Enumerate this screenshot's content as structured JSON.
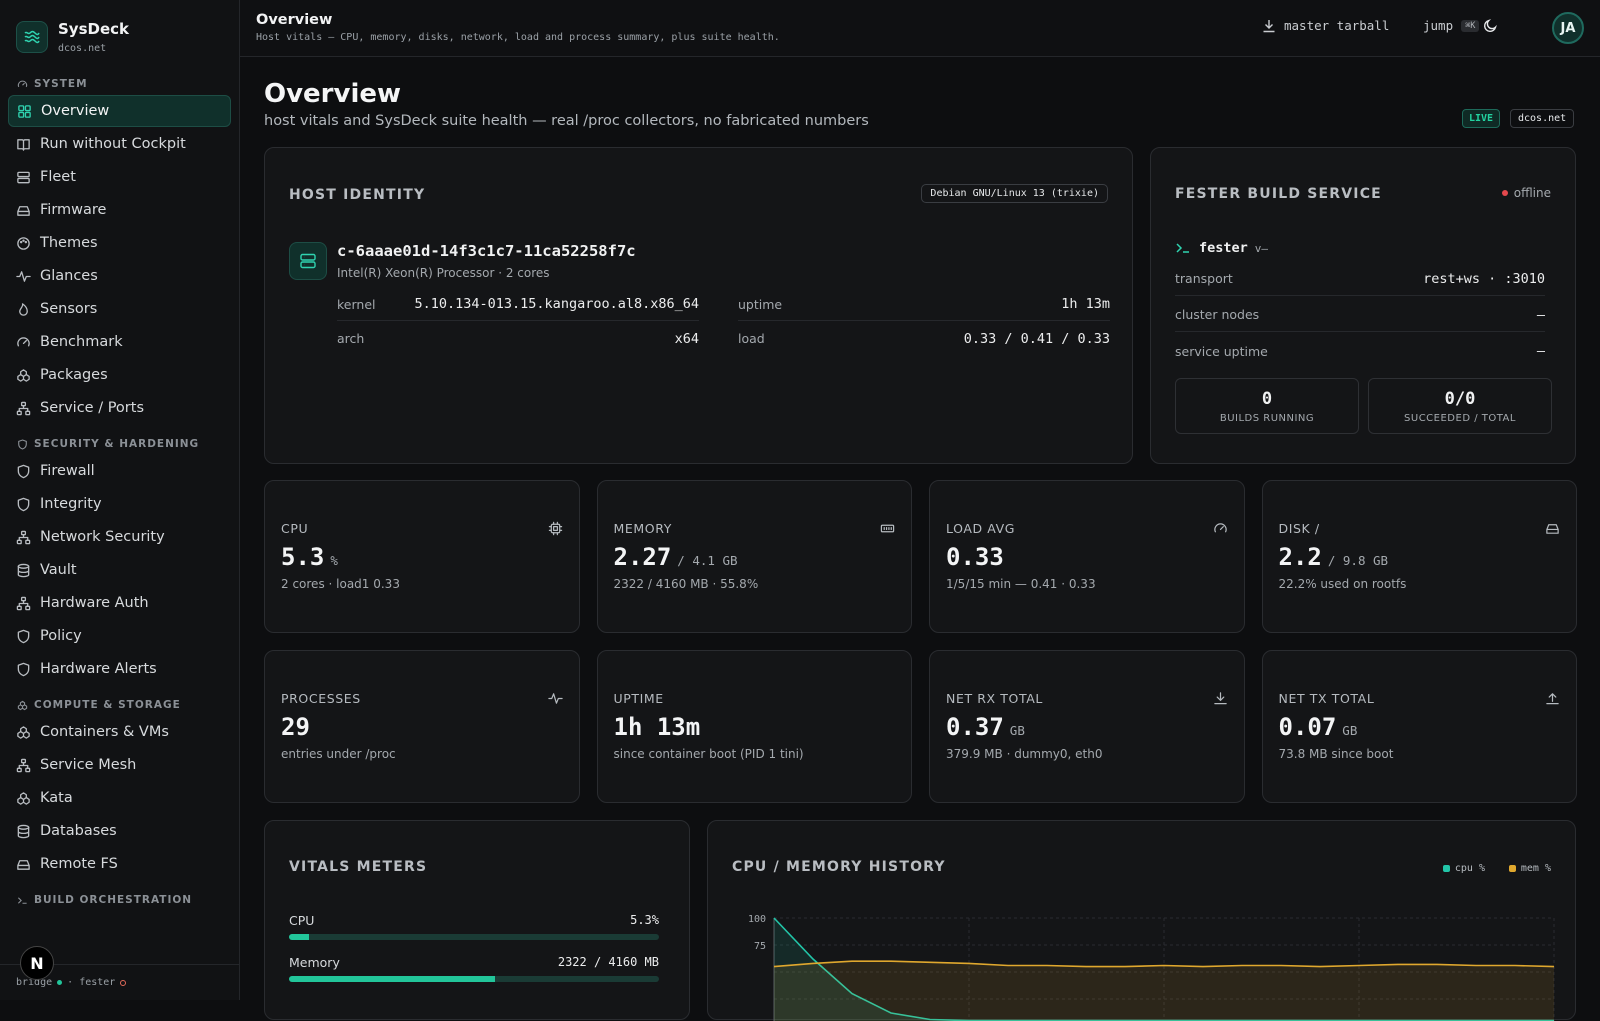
{
  "brand": {
    "name": "SysDeck",
    "host": "dcos.net"
  },
  "sidebar": {
    "sections": [
      {
        "title": "SYSTEM",
        "items": [
          "Overview",
          "Run without Cockpit",
          "Fleet",
          "Firmware",
          "Themes",
          "Glances",
          "Sensors",
          "Benchmark",
          "Packages",
          "Service / Ports"
        ]
      },
      {
        "title": "SECURITY & HARDENING",
        "items": [
          "Firewall",
          "Integrity",
          "Network Security",
          "Vault",
          "Hardware Auth",
          "Policy",
          "Hardware Alerts"
        ]
      },
      {
        "title": "COMPUTE & STORAGE",
        "items": [
          "Containers & VMs",
          "Service Mesh",
          "Kata",
          "Databases",
          "Remote FS"
        ]
      },
      {
        "title": "BUILD ORCHESTRATION",
        "items": []
      }
    ],
    "footer": {
      "bridge": "bridge",
      "sep": "·",
      "fester": "fester"
    },
    "badge": "N"
  },
  "topbar": {
    "title": "Overview",
    "subtitle": "Host vitals — CPU, memory, disks, network, load and process summary, plus suite health.",
    "tarball": "master tarball",
    "jump": "jump",
    "jump_kbd": "⌘K",
    "avatar": "JA"
  },
  "page": {
    "title": "Overview",
    "subtitle": "host vitals and SysDeck suite health — real /proc collectors, no fabricated numbers",
    "live": "LIVE",
    "host_tag": "dcos.net"
  },
  "host": {
    "heading": "HOST IDENTITY",
    "os": "Debian GNU/Linux 13 (trixie)",
    "name": "c-6aaae01d-14f3c1c7-11ca52258f7c",
    "cpu": "Intel(R) Xeon(R) Processor · 2 cores",
    "kernel_k": "kernel",
    "kernel_v": "5.10.134-013.15.kangaroo.al8.x86_64",
    "arch_k": "arch",
    "arch_v": "x64",
    "uptime_k": "uptime",
    "uptime_v": "1h 13m",
    "load_k": "load",
    "load_v": "0.33 / 0.41 / 0.33"
  },
  "fester": {
    "heading": "FESTER BUILD SERVICE",
    "status": "offline",
    "name": "fester",
    "version": "v—",
    "transport_k": "transport",
    "transport_v": "rest+ws · :3010",
    "nodes_k": "cluster nodes",
    "nodes_v": "—",
    "uptime_k": "service uptime",
    "uptime_v": "—",
    "builds_running": "0",
    "builds_running_l": "BUILDS RUNNING",
    "succeeded": "0/0",
    "succeeded_l": "SUCCEEDED / TOTAL"
  },
  "metrics": [
    {
      "label": "CPU",
      "value": "5.3",
      "unit": "%",
      "sub": "2 cores · load1 0.33"
    },
    {
      "label": "MEMORY",
      "value": "2.27",
      "unit": "/ 4.1 GB",
      "sub": "2322 / 4160 MB · 55.8%"
    },
    {
      "label": "LOAD AVG",
      "value": "0.33",
      "unit": "",
      "sub": "1/5/15 min — 0.41 · 0.33"
    },
    {
      "label": "DISK /",
      "value": "2.2",
      "unit": "/ 9.8 GB",
      "sub": "22.2% used on rootfs"
    },
    {
      "label": "PROCESSES",
      "value": "29",
      "unit": "",
      "sub": "entries under /proc"
    },
    {
      "label": "UPTIME",
      "value": "1h 13m",
      "unit": "",
      "sub": "since container boot (PID 1 tini)"
    },
    {
      "label": "NET RX TOTAL",
      "value": "0.37",
      "unit": "GB",
      "sub": "379.9 MB · dummy0, eth0"
    },
    {
      "label": "NET TX TOTAL",
      "value": "0.07",
      "unit": "GB",
      "sub": "73.8 MB since boot"
    }
  ],
  "vitals": {
    "heading": "VITALS METERS",
    "rows": [
      {
        "label": "CPU",
        "value": "5.3%",
        "fraction": 0.053
      },
      {
        "label": "Memory",
        "value": "2322 / 4160 MB",
        "fraction": 0.558
      }
    ]
  },
  "chart_data": {
    "type": "line",
    "title": "CPU / MEMORY HISTORY",
    "legend": "top-right",
    "yticks": [
      "100",
      "75"
    ],
    "ylim": [
      0,
      100
    ],
    "x": [
      0,
      1,
      2,
      3,
      4,
      5,
      6,
      7,
      8,
      9,
      10,
      11,
      12,
      13,
      14,
      15,
      16,
      17,
      18,
      19,
      20
    ],
    "series": [
      {
        "name": "cpu %",
        "color": "#22c5a8",
        "values": [
          100,
          62,
          30,
          12,
          6,
          5,
          5,
          5,
          5,
          5,
          5,
          5,
          5,
          5,
          5,
          5,
          5,
          5,
          5,
          5,
          5
        ]
      },
      {
        "name": "mem %",
        "color": "#e0a82e",
        "values": [
          55,
          58,
          60,
          60,
          59,
          58,
          56,
          56,
          55,
          55,
          56,
          55,
          56,
          56,
          55,
          56,
          57,
          57,
          56,
          56,
          55
        ]
      }
    ],
    "grid": true
  }
}
